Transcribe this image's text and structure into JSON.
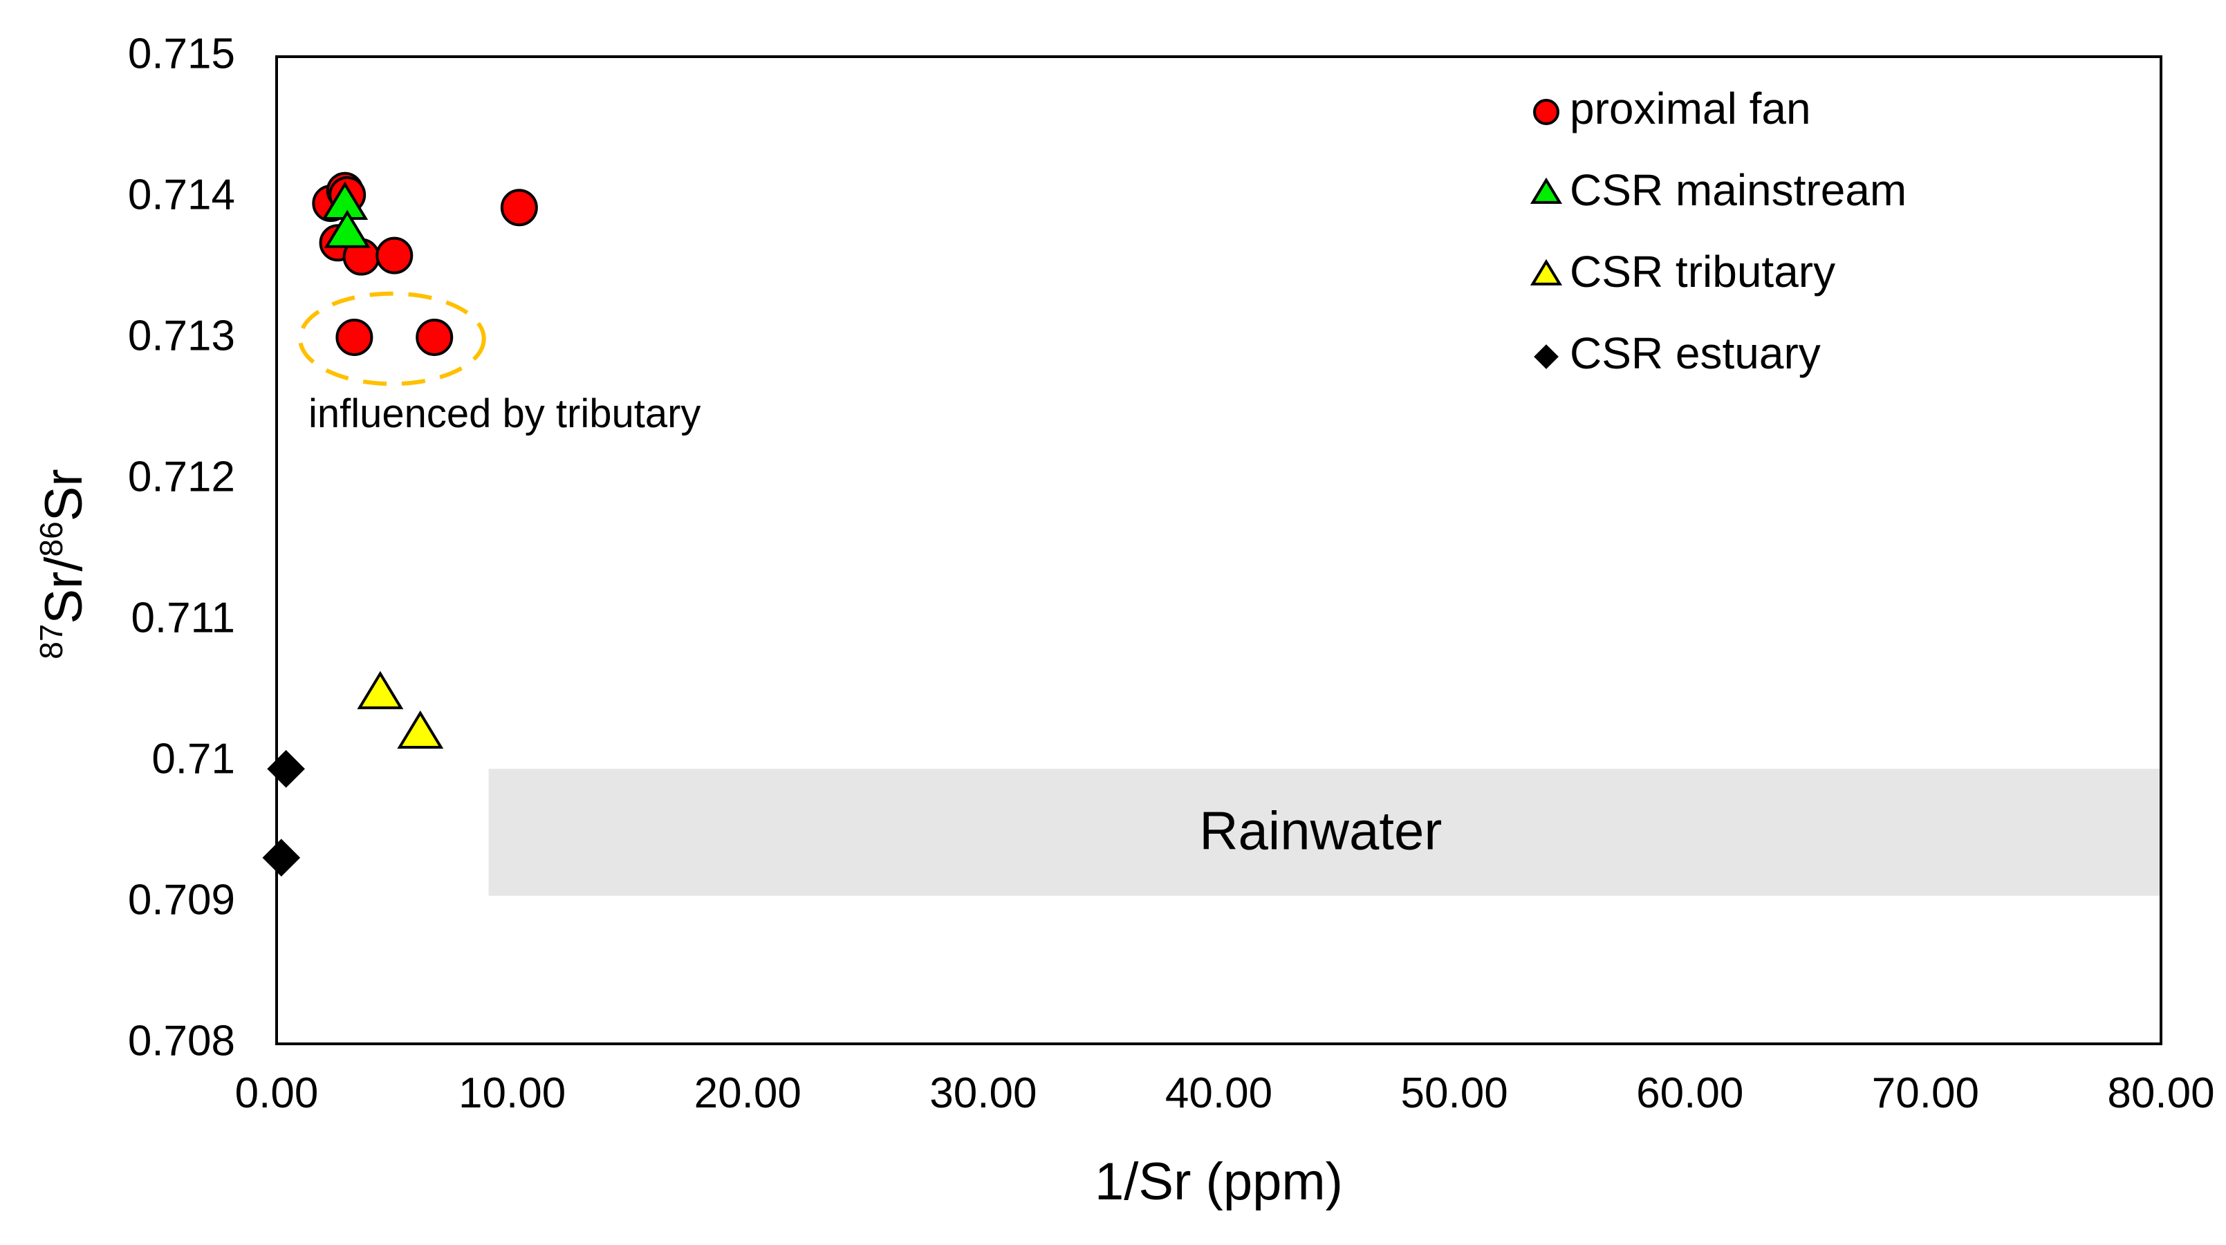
{
  "chart_data": {
    "type": "scatter",
    "title": "",
    "xlabel": "1/Sr (ppm)",
    "ylabel": {
      "sup1": "87",
      "text1": "Sr/",
      "sup2": "86",
      "text2": "Sr"
    },
    "xlim": [
      0,
      80
    ],
    "ylim": [
      0.708,
      0.715
    ],
    "x_ticks": [
      0,
      10,
      20,
      30,
      40,
      50,
      60,
      70,
      80
    ],
    "x_tick_labels": [
      "0.00",
      "10.00",
      "20.00",
      "30.00",
      "40.00",
      "50.00",
      "60.00",
      "70.00",
      "80.00"
    ],
    "y_ticks": [
      0.708,
      0.709,
      0.71,
      0.711,
      0.712,
      0.713,
      0.714,
      0.715
    ],
    "y_tick_labels": [
      "0.708",
      "0.709",
      "0.71",
      "0.711",
      "0.712",
      "0.713",
      "0.714",
      "0.715"
    ],
    "grid": false,
    "legend_position": "top-right",
    "series": [
      {
        "name": "proximal fan",
        "marker": "circle",
        "color": "#ff0000",
        "points": [
          {
            "x": 2.3,
            "y": 0.71396
          },
          {
            "x": 2.9,
            "y": 0.71405
          },
          {
            "x": 3.0,
            "y": 0.71402
          },
          {
            "x": 2.6,
            "y": 0.71368
          },
          {
            "x": 3.6,
            "y": 0.71358
          },
          {
            "x": 5.0,
            "y": 0.71359
          },
          {
            "x": 10.3,
            "y": 0.71393
          },
          {
            "x": 3.3,
            "y": 0.71301
          },
          {
            "x": 6.7,
            "y": 0.71301
          }
        ]
      },
      {
        "name": "CSR mainstream",
        "marker": "triangle",
        "color": "#00ee00",
        "points": [
          {
            "x": 2.9,
            "y": 0.71395
          },
          {
            "x": 3.0,
            "y": 0.71375
          }
        ]
      },
      {
        "name": "CSR tributary",
        "marker": "triangle",
        "color": "#ffff00",
        "points": [
          {
            "x": 4.4,
            "y": 0.71048
          },
          {
            "x": 6.1,
            "y": 0.7102
          }
        ]
      },
      {
        "name": "CSR estuary",
        "marker": "diamond",
        "color": "#000000",
        "points": [
          {
            "x": 0.4,
            "y": 0.70995
          },
          {
            "x": 0.2,
            "y": 0.70932
          }
        ]
      }
    ],
    "annotations": {
      "rainwater": {
        "label": "Rainwater",
        "x_range": [
          9.0,
          80.0
        ],
        "y_range": [
          0.70905,
          0.70995
        ],
        "color": "#e6e6e6"
      },
      "tributary_group": {
        "label": "influenced by tributary",
        "center": {
          "x": 4.9,
          "y": 0.713
        },
        "radius_x": 3.9,
        "radius_y": 0.00032,
        "color": "#ffc000"
      }
    }
  }
}
